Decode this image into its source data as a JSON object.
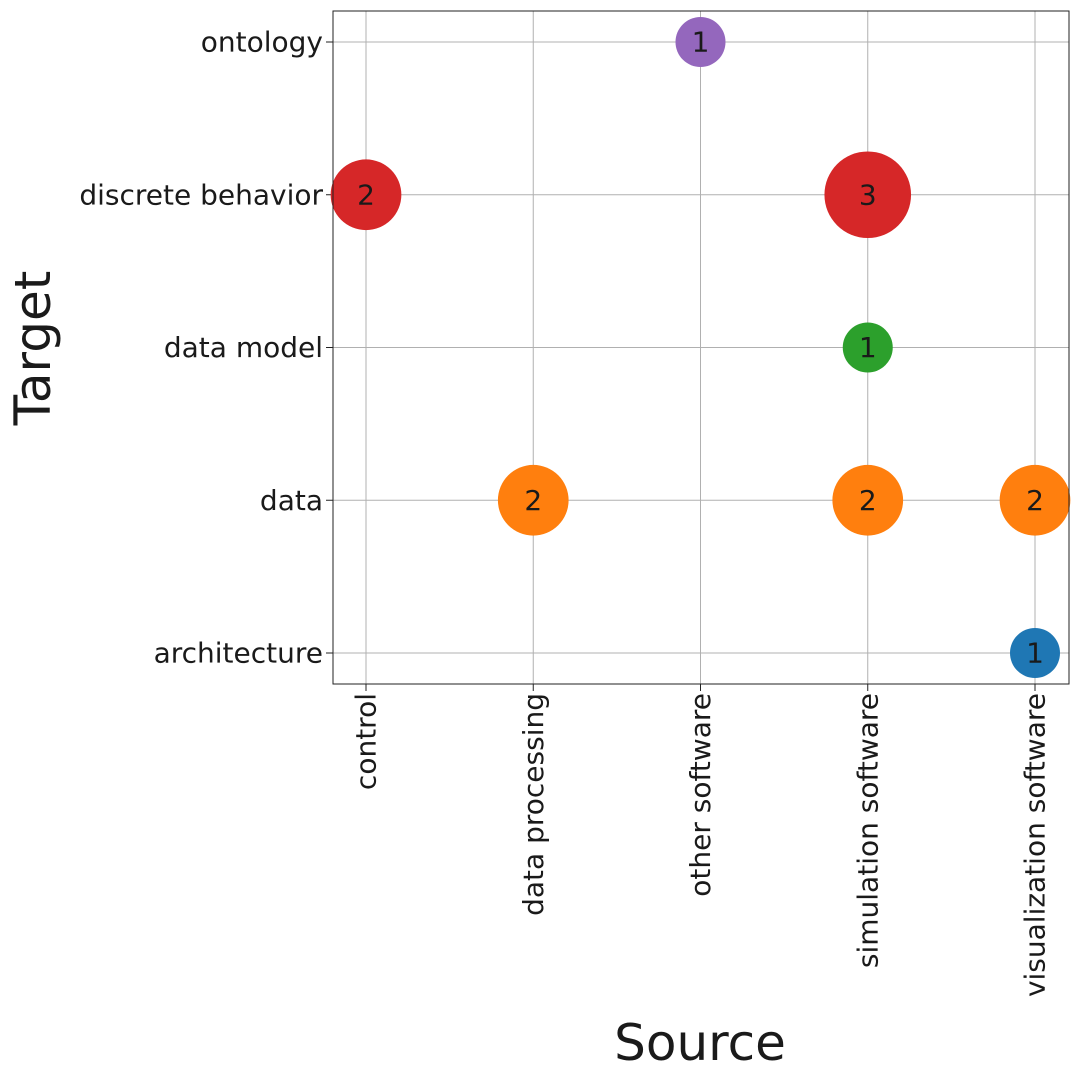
{
  "chart_data": {
    "type": "scatter",
    "xlabel": "Source",
    "ylabel": "Target",
    "x_categories": [
      "control",
      "data processing",
      "other software",
      "simulation software",
      "visualization software"
    ],
    "y_categories": [
      "architecture",
      "data",
      "data model",
      "discrete behavior",
      "ontology"
    ],
    "grid": true,
    "points": [
      {
        "x": "other software",
        "y": "ontology",
        "value": 1,
        "color": "#9467bd"
      },
      {
        "x": "control",
        "y": "discrete behavior",
        "value": 2,
        "color": "#d62728"
      },
      {
        "x": "simulation software",
        "y": "discrete behavior",
        "value": 3,
        "color": "#d62728"
      },
      {
        "x": "simulation software",
        "y": "data model",
        "value": 1,
        "color": "#2ca02c"
      },
      {
        "x": "data processing",
        "y": "data",
        "value": 2,
        "color": "#ff7f0e"
      },
      {
        "x": "simulation software",
        "y": "data",
        "value": 2,
        "color": "#ff7f0e"
      },
      {
        "x": "visualization software",
        "y": "data",
        "value": 2,
        "color": "#ff7f0e"
      },
      {
        "x": "visualization software",
        "y": "architecture",
        "value": 1,
        "color": "#1f77b4"
      }
    ]
  }
}
